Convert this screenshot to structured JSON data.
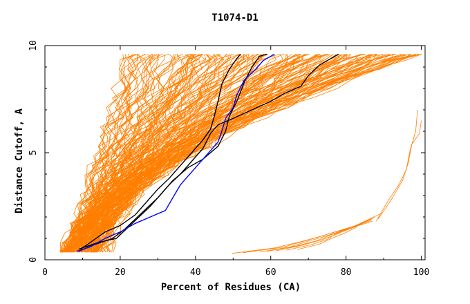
{
  "chart_data": {
    "type": "line",
    "title": "T1074-D1",
    "xlabel": "Percent of Residues (CA)",
    "ylabel": "Distance Cutoff, A",
    "xlim": [
      0,
      101
    ],
    "ylim": [
      0,
      10
    ],
    "x_ticks": [
      0,
      20,
      40,
      60,
      80,
      100
    ],
    "x_tick_labels": [
      "0",
      "20",
      "40",
      "60",
      "80",
      "100"
    ],
    "y_ticks": [
      0,
      5,
      10
    ],
    "y_tick_labels": [
      "0",
      "5",
      "10"
    ],
    "grid": false,
    "legend": "none",
    "colors": {
      "background_model": "#ff7f00",
      "highlight_black": "#000000",
      "highlight_blue": "#0000ff",
      "axes": "#000000"
    },
    "background_curve_count": 180,
    "series": [
      {
        "color": "#000000",
        "points": [
          [
            9.5,
            0.5
          ],
          [
            12,
            0.8
          ],
          [
            16,
            1.3
          ],
          [
            20,
            1.6
          ],
          [
            24,
            2.1
          ],
          [
            26,
            2.5
          ],
          [
            30,
            3.3
          ],
          [
            33,
            3.8
          ],
          [
            36,
            4.4
          ],
          [
            39,
            5.0
          ],
          [
            42,
            5.6
          ],
          [
            44,
            6.1
          ],
          [
            45,
            6.7
          ],
          [
            46,
            7.4
          ],
          [
            47,
            8.2
          ],
          [
            49,
            8.9
          ],
          [
            51,
            9.4
          ],
          [
            52,
            9.6
          ]
        ]
      },
      {
        "color": "#000000",
        "points": [
          [
            9,
            0.5
          ],
          [
            14,
            0.8
          ],
          [
            19,
            1.0
          ],
          [
            22,
            1.5
          ],
          [
            25,
            2.0
          ],
          [
            28,
            2.5
          ],
          [
            31,
            3.1
          ],
          [
            34,
            3.7
          ],
          [
            38,
            4.3
          ],
          [
            42,
            4.7
          ],
          [
            46,
            5.3
          ],
          [
            48,
            6.0
          ],
          [
            49,
            6.7
          ],
          [
            51,
            7.4
          ],
          [
            53,
            8.3
          ],
          [
            55,
            9.0
          ],
          [
            57,
            9.5
          ],
          [
            59,
            9.6
          ]
        ]
      },
      {
        "color": "#000000",
        "points": [
          [
            9,
            0.4
          ],
          [
            13,
            0.7
          ],
          [
            18,
            1.0
          ],
          [
            21,
            1.4
          ],
          [
            24,
            1.9
          ],
          [
            27,
            2.4
          ],
          [
            30,
            2.9
          ],
          [
            33,
            3.5
          ],
          [
            36,
            4.0
          ],
          [
            39,
            4.6
          ],
          [
            42,
            5.2
          ],
          [
            44,
            5.9
          ],
          [
            46,
            6.3
          ],
          [
            50,
            6.6
          ],
          [
            55,
            7.0
          ],
          [
            60,
            7.4
          ],
          [
            64,
            7.8
          ],
          [
            68,
            8.1
          ],
          [
            70,
            8.6
          ],
          [
            73,
            9.1
          ],
          [
            76,
            9.4
          ],
          [
            78,
            9.6
          ]
        ]
      },
      {
        "color": "#0000ff",
        "points": [
          [
            8.5,
            0.4
          ],
          [
            12,
            0.6
          ],
          [
            16,
            1.0
          ],
          [
            20,
            1.3
          ],
          [
            24,
            1.7
          ],
          [
            28,
            2.0
          ],
          [
            32,
            2.3
          ],
          [
            34,
            2.9
          ],
          [
            36,
            3.5
          ],
          [
            38,
            3.9
          ],
          [
            40,
            4.3
          ],
          [
            42,
            4.7
          ],
          [
            44,
            5.1
          ],
          [
            46,
            5.5
          ],
          [
            47,
            6.0
          ],
          [
            48,
            6.6
          ],
          [
            50,
            7.1
          ],
          [
            51,
            7.7
          ],
          [
            53,
            8.4
          ],
          [
            56,
            8.9
          ],
          [
            58,
            9.3
          ],
          [
            61,
            9.6
          ]
        ]
      }
    ]
  }
}
